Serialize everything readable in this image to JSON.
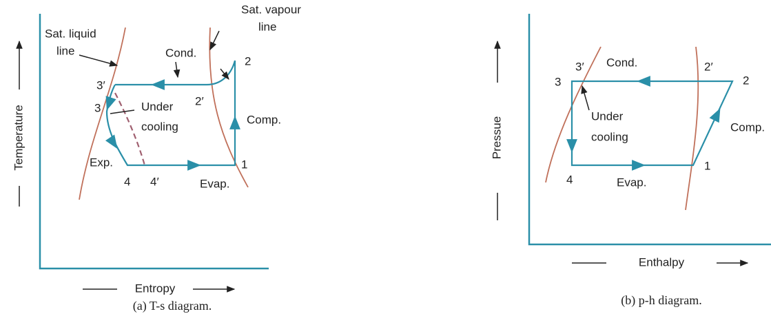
{
  "ts_diagram": {
    "labels": [
      "Sat. liquid",
      "line",
      "Sat. vapour",
      "line",
      "Cond.",
      "2",
      "3′",
      "2′",
      "3",
      "Under",
      "cooling",
      "Comp.",
      "Exp.",
      "1",
      "4",
      "4′",
      "Evap."
    ],
    "y_axis": "Temperature",
    "x_axis": "Entropy",
    "caption": "(a) T-s diagram."
  },
  "ph_diagram": {
    "labels": [
      "3",
      "3′",
      "Cond.",
      "2′",
      "2",
      "Under",
      "cooling",
      "Comp.",
      "4",
      "1",
      "Evap."
    ],
    "y_axis": "Pressue",
    "x_axis": "Enthalpy",
    "caption": "(b) p-h diagram."
  }
}
